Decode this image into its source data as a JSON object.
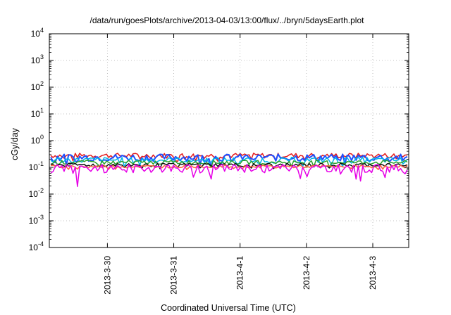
{
  "chart_data": {
    "type": "line",
    "title": "/data/run/goesPlots/archive/2013-04-03/13:00/flux/../bryn/5daysEarth.plot",
    "xlabel": "Coordinated Universal Time (UTC)",
    "ylabel": "cGy/day",
    "yscale": "log",
    "ylim": [
      0.0001,
      10000
    ],
    "y_ticks": [
      {
        "value": 0.0001,
        "base": "10",
        "exp": "-4"
      },
      {
        "value": 0.001,
        "base": "10",
        "exp": "-3"
      },
      {
        "value": 0.01,
        "base": "10",
        "exp": "-2"
      },
      {
        "value": 0.1,
        "base": "10",
        "exp": "-1"
      },
      {
        "value": 1,
        "base": "10",
        "exp": "0"
      },
      {
        "value": 10,
        "base": "10",
        "exp": "1"
      },
      {
        "value": 100,
        "base": "10",
        "exp": "2"
      },
      {
        "value": 1000,
        "base": "10",
        "exp": "3"
      },
      {
        "value": 10000,
        "base": "10",
        "exp": "4"
      }
    ],
    "xlim": [
      "2013-03-29 03:00",
      "2013-04-03 13:00"
    ],
    "x_ticks": [
      {
        "label": "2013-3-30",
        "value": "2013-03-30 00:00"
      },
      {
        "label": "2013-3-31",
        "value": "2013-03-31 00:00"
      },
      {
        "label": "2013-4-1",
        "value": "2013-04-01 00:00"
      },
      {
        "label": "2013-4-2",
        "value": "2013-04-02 00:00"
      },
      {
        "label": "2013-4-3",
        "value": "2013-04-03 00:00"
      }
    ],
    "grid": true,
    "legend": "none",
    "series": [
      {
        "color": "#e41a1c",
        "level": 0.28,
        "variation": 0.22
      },
      {
        "color": "#1e50ff",
        "level": 0.24,
        "variation": 0.3
      },
      {
        "color": "#00b4e6",
        "level": 0.19,
        "variation": 0.25
      },
      {
        "color": "#2ca02c",
        "level": 0.155,
        "variation": 0.18
      },
      {
        "color": "#111111",
        "level": 0.125,
        "variation": 0.15
      },
      {
        "color": "#ff6040",
        "level": 0.108,
        "variation": 0.12
      },
      {
        "color": "#e600e6",
        "level": 0.095,
        "variation": 0.35
      }
    ]
  }
}
